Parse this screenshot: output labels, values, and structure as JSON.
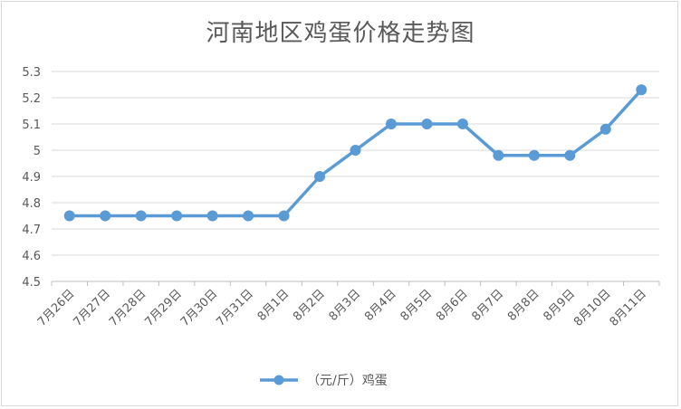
{
  "chart_data": {
    "type": "line",
    "title": "河南地区鸡蛋价格走势图",
    "xlabel": "",
    "ylabel": "",
    "categories": [
      "7月26日",
      "7月27日",
      "7月28日",
      "7月29日",
      "7月30日",
      "7月31日",
      "8月1日",
      "8月2日",
      "8月3日",
      "8月4日",
      "8月5日",
      "8月6日",
      "8月7日",
      "8月8日",
      "8月9日",
      "8月10日",
      "8月11日"
    ],
    "series": [
      {
        "name": "（元/斤）鸡蛋",
        "values": [
          4.75,
          4.75,
          4.75,
          4.75,
          4.75,
          4.75,
          4.75,
          4.9,
          5.0,
          5.1,
          5.1,
          5.1,
          4.98,
          4.98,
          4.98,
          5.08,
          5.23
        ]
      }
    ],
    "ylim": [
      4.5,
      5.3
    ],
    "yticks": [
      "4.5",
      "4.6",
      "4.7",
      "4.8",
      "4.9",
      "5",
      "5.1",
      "5.2",
      "5.3"
    ],
    "grid": true,
    "legend": "bottom",
    "line_color": "#5b9bd5"
  }
}
